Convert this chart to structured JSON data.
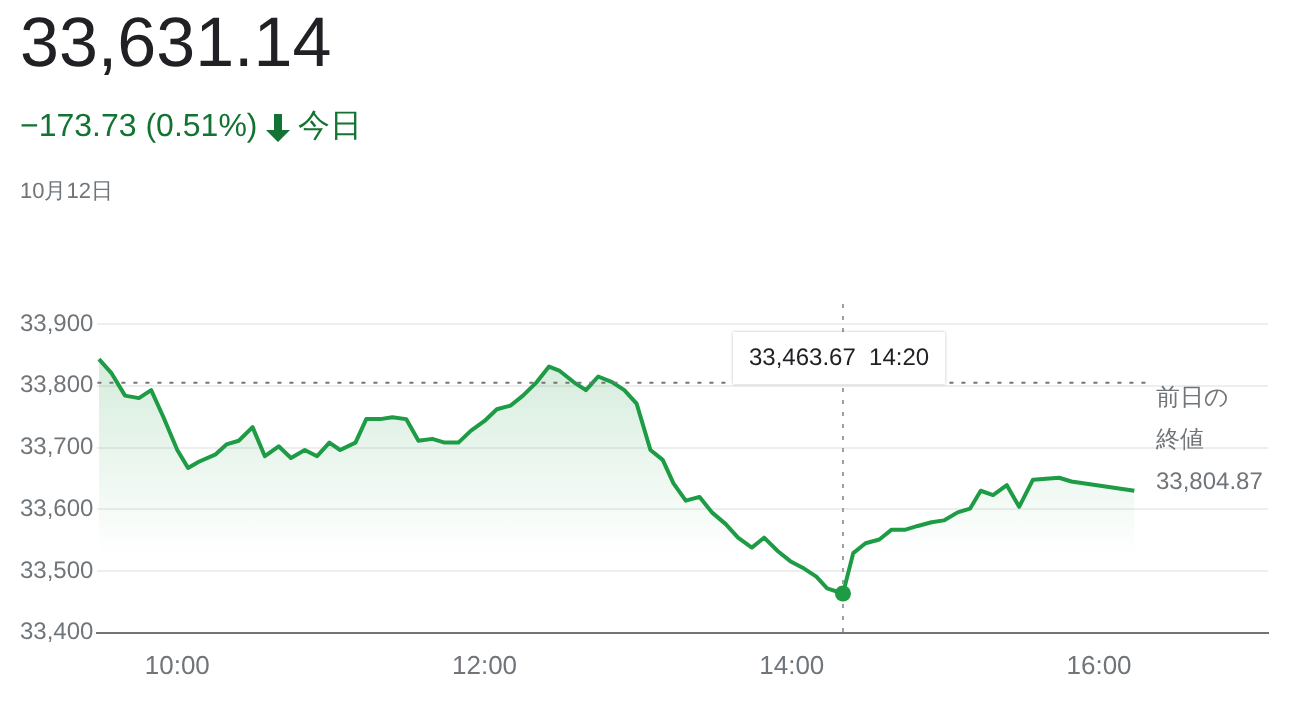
{
  "chart_data": {
    "type": "area",
    "title": "33,631.14",
    "subtitle": "−173.73 (0.51%)",
    "annotations": [
      "今日",
      "10月12日"
    ],
    "series": [
      {
        "color": "#1e9b45",
        "x": [
          9.49,
          9.57,
          9.66,
          9.75,
          9.83,
          9.91,
          10.0,
          10.07,
          10.14,
          10.25,
          10.32,
          10.4,
          10.49,
          10.57,
          10.66,
          10.74,
          10.83,
          10.91,
          10.99,
          11.06,
          11.16,
          11.23,
          11.32,
          11.4,
          11.49,
          11.57,
          11.66,
          11.74,
          11.83,
          11.91,
          12.0,
          12.08,
          12.17,
          12.25,
          12.34,
          12.42,
          12.49,
          12.58,
          12.66,
          12.74,
          12.83,
          12.91,
          12.99,
          13.08,
          13.16,
          13.23,
          13.31,
          13.4,
          13.48,
          13.57,
          13.65,
          13.74,
          13.82,
          13.91,
          13.99,
          14.08,
          14.16,
          14.23,
          14.3333,
          14.4,
          14.48,
          14.57,
          14.65,
          14.74,
          14.82,
          14.91,
          14.99,
          15.08,
          15.16,
          15.23,
          15.31,
          15.4,
          15.48,
          15.57,
          15.74,
          15.82,
          16.23
        ],
        "values": [
          33843,
          33821,
          33784,
          33780,
          33793,
          33749,
          33696,
          33667,
          33677,
          33689,
          33705,
          33711,
          33733,
          33686,
          33702,
          33683,
          33696,
          33686,
          33708,
          33696,
          33708,
          33746,
          33746,
          33749,
          33746,
          33711,
          33714,
          33708,
          33708,
          33727,
          33743,
          33762,
          33768,
          33784,
          33806,
          33831,
          33824,
          33806,
          33793,
          33815,
          33806,
          33793,
          33771,
          33696,
          33680,
          33642,
          33614,
          33620,
          33595,
          33576,
          33554,
          33538,
          33554,
          33532,
          33516,
          33504,
          33491,
          33472,
          33463.67,
          33529,
          33545,
          33551,
          33567,
          33567,
          33573,
          33579,
          33582,
          33595,
          33601,
          33630,
          33623,
          33639,
          33604,
          33648,
          33651,
          33645,
          33630
        ]
      }
    ],
    "xlim": [
      9.48,
      17.1
    ],
    "xticks": [
      {
        "value": 10,
        "label": "10:00"
      },
      {
        "value": 12,
        "label": "12:00"
      },
      {
        "value": 14,
        "label": "14:00"
      },
      {
        "value": 16,
        "label": "16:00"
      }
    ],
    "ylim": [
      33400,
      33900
    ],
    "yticks": [
      {
        "value": 33400,
        "label": "33,400"
      },
      {
        "value": 33500,
        "label": "33,500"
      },
      {
        "value": 33600,
        "label": "33,600"
      },
      {
        "value": 33700,
        "label": "33,700"
      },
      {
        "value": 33800,
        "label": "33,800"
      },
      {
        "value": 33900,
        "label": "33,900"
      }
    ],
    "ref_lines": [
      {
        "axis": "y",
        "value": 33804.87,
        "label": "前日の終値 33,804.87",
        "color": "#757575",
        "line_style": "dotted"
      },
      {
        "axis": "x",
        "value": 14.3333,
        "label": "33,463.67  14:20",
        "color": "#9aa0a6",
        "line_style": "dotted"
      }
    ],
    "grid": "y",
    "legend": false,
    "marker": "none",
    "line_style": "solid"
  }
}
